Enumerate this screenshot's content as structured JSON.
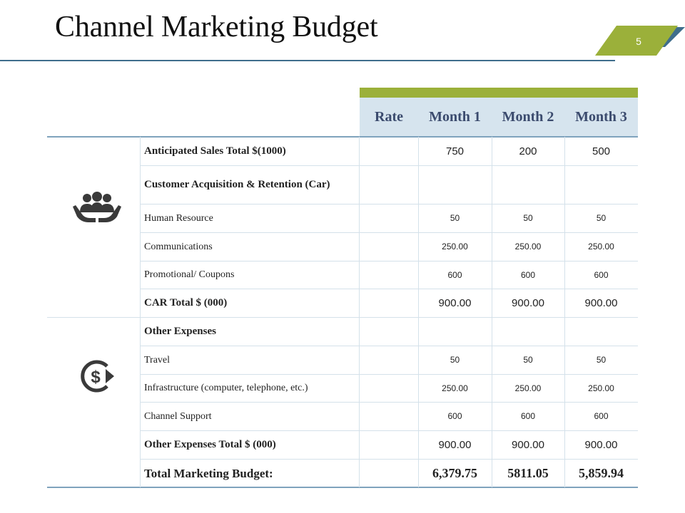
{
  "title": "Channel Marketing Budget",
  "slide_number": "5",
  "colors": {
    "accent_green": "#9bb03a",
    "accent_blue": "#3f6e8c",
    "header_bg": "#d6e4ee",
    "header_text": "#3b4b6e"
  },
  "table": {
    "headers": [
      "Rate",
      "Month 1",
      "Month 2",
      "Month 3"
    ],
    "rows": [
      {
        "label": "Anticipated Sales Total $(1000)",
        "style": "bold",
        "values": [
          "750",
          "200",
          "500"
        ]
      },
      {
        "label": "Customer Acquisition & Retention (Car)",
        "style": "bold",
        "values": [
          "",
          "",
          ""
        ]
      },
      {
        "label": "Human Resource",
        "style": "normal",
        "values": [
          "50",
          "50",
          "50"
        ]
      },
      {
        "label": "Communications",
        "style": "normal",
        "values": [
          "250.00",
          "250.00",
          "250.00"
        ]
      },
      {
        "label": "Promotional/ Coupons",
        "style": "normal",
        "values": [
          "600",
          "600",
          "600"
        ]
      },
      {
        "label": "CAR Total $ (000)",
        "style": "bold",
        "values": [
          "900.00",
          "900.00",
          "900.00"
        ]
      },
      {
        "label": "Other Expenses",
        "style": "bold",
        "values": [
          "",
          "",
          ""
        ]
      },
      {
        "label": "Travel",
        "style": "normal",
        "values": [
          "50",
          "50",
          "50"
        ]
      },
      {
        "label": "Infrastructure (computer, telephone, etc.)",
        "style": "normal",
        "values": [
          "250.00",
          "250.00",
          "250.00"
        ]
      },
      {
        "label": "Channel Support",
        "style": "normal",
        "values": [
          "600",
          "600",
          "600"
        ]
      },
      {
        "label": "Other Expenses Total $ (000)",
        "style": "bold",
        "values": [
          "900.00",
          "900.00",
          "900.00"
        ]
      },
      {
        "label": "Total Marketing Budget:",
        "style": "big",
        "values": [
          "6,379.75",
          "5811.05",
          "5,859.94"
        ]
      }
    ],
    "group_icons": [
      "people-hands-icon",
      "dollar-cycle-icon"
    ]
  }
}
